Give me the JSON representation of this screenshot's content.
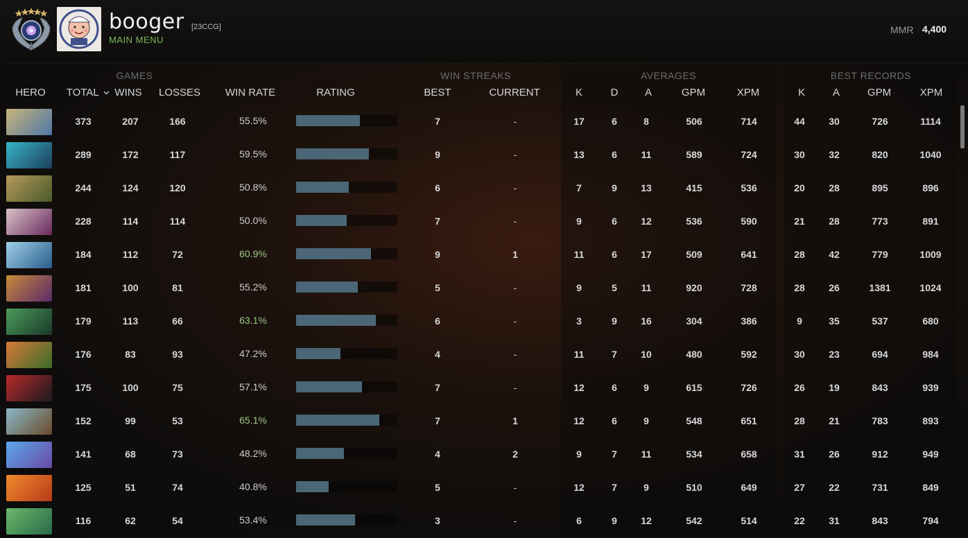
{
  "profile": {
    "username": "booger",
    "clan_tag": "[23CCG]",
    "main_menu_link": "MAIN MENU",
    "mmr_label": "MMR",
    "mmr_value": "4,400"
  },
  "table": {
    "groups": {
      "games": "GAMES",
      "win_streaks": "WIN STREAKS",
      "averages": "AVERAGES",
      "best_records": "BEST RECORDS"
    },
    "columns": {
      "hero": "HERO",
      "total": "TOTAL",
      "wins": "WINS",
      "losses": "LOSSES",
      "win_rate": "WIN RATE",
      "rating": "RATING",
      "best": "BEST",
      "current": "CURRENT",
      "avg_k": "K",
      "avg_d": "D",
      "avg_a": "A",
      "avg_gpm": "GPM",
      "avg_xpm": "XPM",
      "best_k": "K",
      "best_a": "A",
      "best_gpm": "GPM",
      "best_xpm": "XPM"
    },
    "sort_indicator_icon": "chevron-down-icon",
    "rows": [
      {
        "total": "373",
        "wins": "207",
        "losses": "166",
        "win_rate": "55.5%",
        "rating": 0.63,
        "best": "7",
        "current": "-",
        "k": "17",
        "d": "6",
        "a": "8",
        "gpm": "506",
        "xpm": "714",
        "bk": "44",
        "ba": "30",
        "bgpm": "726",
        "bxpm": "1114",
        "hi": false,
        "c1": "#c9b47a",
        "c2": "#4d78a8"
      },
      {
        "total": "289",
        "wins": "172",
        "losses": "117",
        "win_rate": "59.5%",
        "rating": 0.72,
        "best": "9",
        "current": "-",
        "k": "13",
        "d": "6",
        "a": "11",
        "gpm": "589",
        "xpm": "724",
        "bk": "30",
        "ba": "32",
        "bgpm": "820",
        "bxpm": "1040",
        "hi": false,
        "c1": "#37b5c8",
        "c2": "#1c3f5a"
      },
      {
        "total": "244",
        "wins": "124",
        "losses": "120",
        "win_rate": "50.8%",
        "rating": 0.52,
        "best": "6",
        "current": "-",
        "k": "7",
        "d": "9",
        "a": "13",
        "gpm": "415",
        "xpm": "536",
        "bk": "20",
        "ba": "28",
        "bgpm": "895",
        "bxpm": "896",
        "hi": false,
        "c1": "#b69a5c",
        "c2": "#4a5a2a"
      },
      {
        "total": "228",
        "wins": "114",
        "losses": "114",
        "win_rate": "50.0%",
        "rating": 0.5,
        "best": "7",
        "current": "-",
        "k": "9",
        "d": "6",
        "a": "12",
        "gpm": "536",
        "xpm": "590",
        "bk": "21",
        "ba": "28",
        "bgpm": "773",
        "bxpm": "891",
        "hi": false,
        "c1": "#d8c2c8",
        "c2": "#6a2a5e"
      },
      {
        "total": "184",
        "wins": "112",
        "losses": "72",
        "win_rate": "60.9%",
        "rating": 0.74,
        "best": "9",
        "current": "1",
        "k": "11",
        "d": "6",
        "a": "17",
        "gpm": "509",
        "xpm": "641",
        "bk": "28",
        "ba": "42",
        "bgpm": "779",
        "bxpm": "1009",
        "hi": true,
        "c1": "#9fd0e8",
        "c2": "#2a5c8a"
      },
      {
        "total": "181",
        "wins": "100",
        "losses": "81",
        "win_rate": "55.2%",
        "rating": 0.61,
        "best": "5",
        "current": "-",
        "k": "9",
        "d": "5",
        "a": "11",
        "gpm": "920",
        "xpm": "728",
        "bk": "28",
        "ba": "26",
        "bgpm": "1381",
        "bxpm": "1024",
        "hi": false,
        "c1": "#c98a3a",
        "c2": "#5a2a6a"
      },
      {
        "total": "179",
        "wins": "113",
        "losses": "66",
        "win_rate": "63.1%",
        "rating": 0.79,
        "best": "6",
        "current": "-",
        "k": "3",
        "d": "9",
        "a": "16",
        "gpm": "304",
        "xpm": "386",
        "bk": "9",
        "ba": "35",
        "bgpm": "537",
        "bxpm": "680",
        "hi": true,
        "c1": "#4c9a5a",
        "c2": "#1a3a2a"
      },
      {
        "total": "176",
        "wins": "83",
        "losses": "93",
        "win_rate": "47.2%",
        "rating": 0.44,
        "best": "4",
        "current": "-",
        "k": "11",
        "d": "7",
        "a": "10",
        "gpm": "480",
        "xpm": "592",
        "bk": "30",
        "ba": "23",
        "bgpm": "694",
        "bxpm": "984",
        "hi": false,
        "c1": "#d87a3a",
        "c2": "#3a6a2a"
      },
      {
        "total": "175",
        "wins": "100",
        "losses": "75",
        "win_rate": "57.1%",
        "rating": 0.65,
        "best": "7",
        "current": "-",
        "k": "12",
        "d": "6",
        "a": "9",
        "gpm": "615",
        "xpm": "726",
        "bk": "26",
        "ba": "19",
        "bgpm": "843",
        "bxpm": "939",
        "hi": false,
        "c1": "#b82a2a",
        "c2": "#1a1a1e"
      },
      {
        "total": "152",
        "wins": "99",
        "losses": "53",
        "win_rate": "65.1%",
        "rating": 0.82,
        "best": "7",
        "current": "1",
        "k": "12",
        "d": "6",
        "a": "9",
        "gpm": "548",
        "xpm": "651",
        "bk": "28",
        "ba": "21",
        "bgpm": "783",
        "bxpm": "893",
        "hi": true,
        "c1": "#8ab8c8",
        "c2": "#6a4a2a"
      },
      {
        "total": "141",
        "wins": "68",
        "losses": "73",
        "win_rate": "48.2%",
        "rating": 0.47,
        "best": "4",
        "current": "2",
        "k": "9",
        "d": "7",
        "a": "11",
        "gpm": "534",
        "xpm": "658",
        "bk": "31",
        "ba": "26",
        "bgpm": "912",
        "bxpm": "949",
        "hi": false,
        "c1": "#5aa8e8",
        "c2": "#6a4aa8"
      },
      {
        "total": "125",
        "wins": "51",
        "losses": "74",
        "win_rate": "40.8%",
        "rating": 0.32,
        "best": "5",
        "current": "-",
        "k": "12",
        "d": "7",
        "a": "9",
        "gpm": "510",
        "xpm": "649",
        "bk": "27",
        "ba": "22",
        "bgpm": "731",
        "bxpm": "849",
        "hi": false,
        "c1": "#f08a2a",
        "c2": "#b83a1a"
      },
      {
        "total": "116",
        "wins": "62",
        "losses": "54",
        "win_rate": "53.4%",
        "rating": 0.58,
        "best": "3",
        "current": "-",
        "k": "6",
        "d": "9",
        "a": "12",
        "gpm": "542",
        "xpm": "514",
        "bk": "22",
        "ba": "31",
        "bgpm": "843",
        "bxpm": "794",
        "hi": false,
        "c1": "#6ab86a",
        "c2": "#2a6a4a"
      }
    ]
  }
}
